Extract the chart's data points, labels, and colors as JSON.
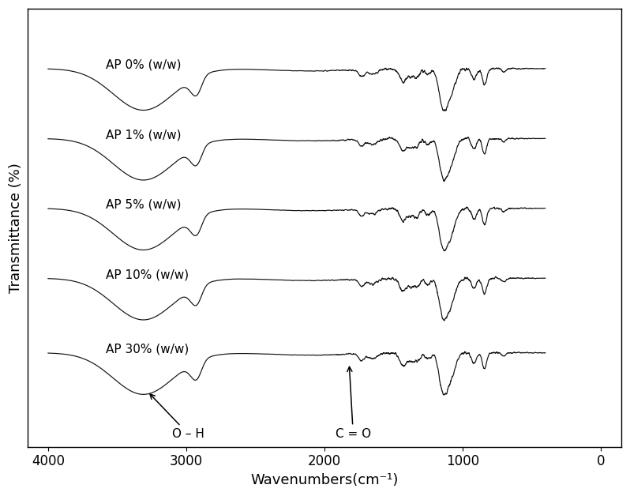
{
  "xlabel": "Wavenumbers(cm⁻¹)",
  "ylabel": "Transmittance (%)",
  "labels": [
    "AP 0% (w/w)",
    "AP 1% (w/w)",
    "AP 5% (w/w)",
    "AP 10% (w/w)",
    "AP 30% (w/w)"
  ],
  "offsets": [
    3.6,
    2.85,
    2.1,
    1.35,
    0.55
  ],
  "y_scale": 0.62,
  "line_color": "#111111",
  "background_color": "#ffffff",
  "annotation_OH": "O – H",
  "annotation_CO": "C = O",
  "xlim_left": 4150,
  "xlim_right": -150,
  "ylim_bottom": 0.1,
  "ylim_top": 4.8,
  "xticks": [
    4000,
    3000,
    2000,
    1000,
    0
  ],
  "xlabel_fontsize": 13,
  "ylabel_fontsize": 13,
  "tick_fontsize": 12,
  "label_fontsize": 11,
  "linewidth": 0.85
}
